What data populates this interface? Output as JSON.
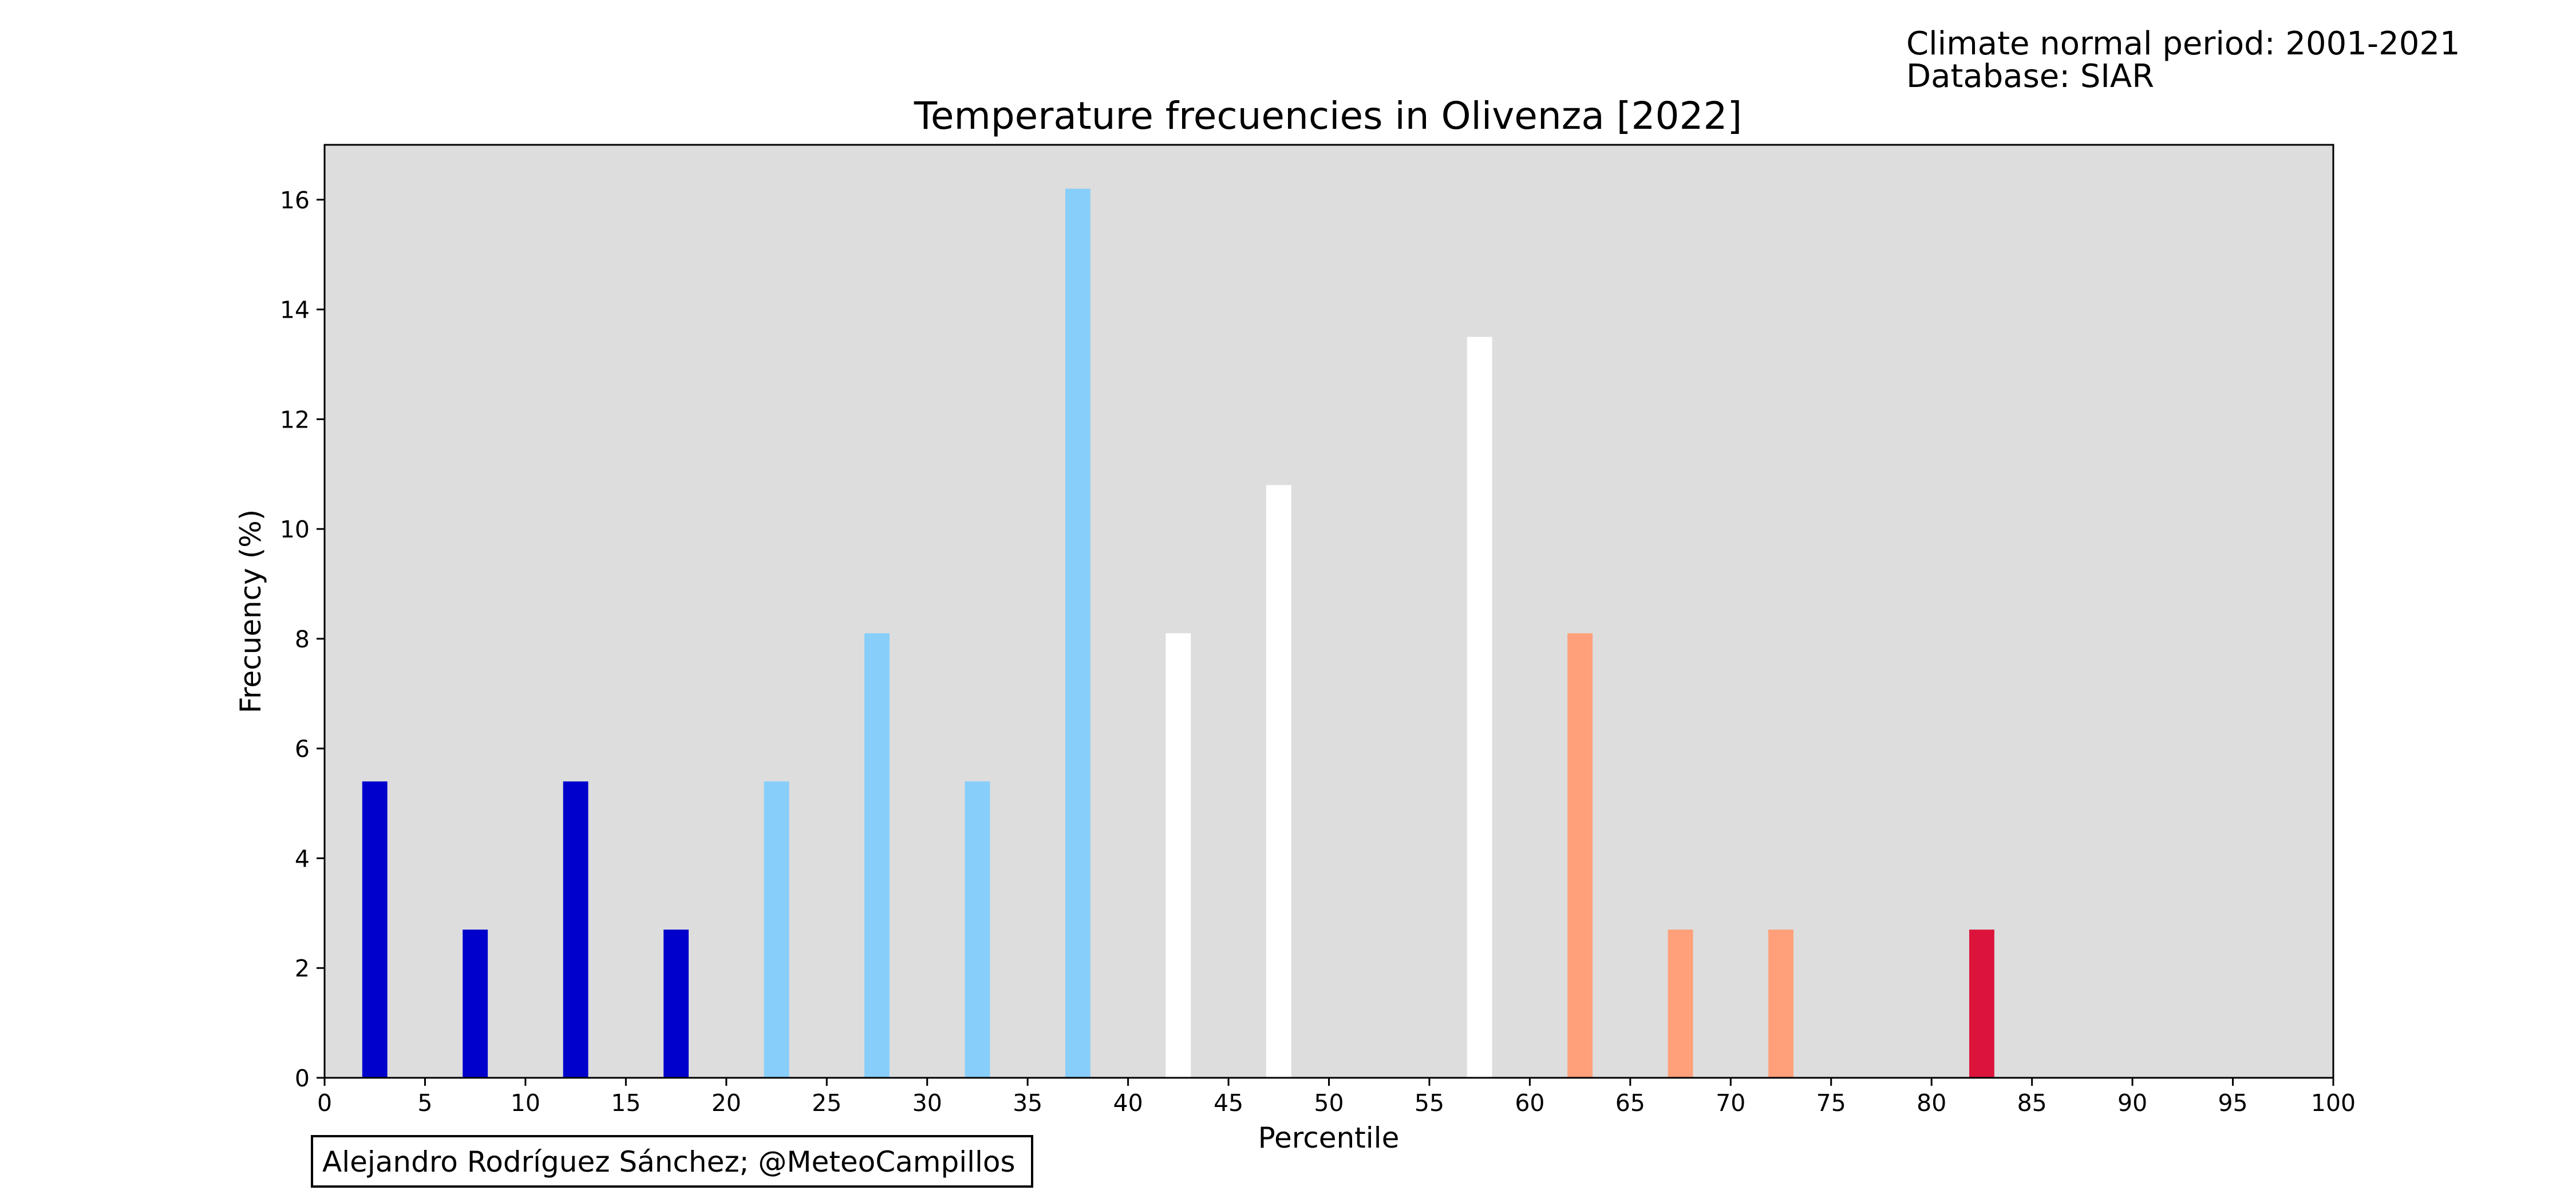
{
  "info": {
    "line1": "Climate normal period: 2001-2021",
    "line2": "Database: SIAR"
  },
  "credit": "Alejandro Rodríguez Sánchez; @MeteoCampillos",
  "chart_data": {
    "type": "bar",
    "title": "Temperature frecuencies in Olivenza [2022]",
    "xlabel": "Percentile",
    "ylabel": "Frecuency (%)",
    "xlim": [
      0,
      100
    ],
    "ylim": [
      0,
      17
    ],
    "xticks": [
      0,
      5,
      10,
      15,
      20,
      25,
      30,
      35,
      40,
      45,
      50,
      55,
      60,
      65,
      70,
      75,
      80,
      85,
      90,
      95,
      100
    ],
    "yticks": [
      0,
      2,
      4,
      6,
      8,
      10,
      12,
      14,
      16
    ],
    "grid": false,
    "background": "#dddddd",
    "bar_width": 1.25,
    "x": [
      2.5,
      7.5,
      12.5,
      17.5,
      22.5,
      27.5,
      32.5,
      37.5,
      42.5,
      47.5,
      52.5,
      57.5,
      62.5,
      67.5,
      72.5,
      77.5,
      82.5,
      87.5,
      92.5,
      97.5
    ],
    "values": [
      5.4,
      2.7,
      5.4,
      2.7,
      5.4,
      8.1,
      5.4,
      16.2,
      8.1,
      10.8,
      0,
      13.5,
      8.1,
      2.7,
      2.7,
      0,
      2.7,
      0,
      0,
      0
    ],
    "colors": [
      "#0000cd",
      "#0000cd",
      "#0000cd",
      "#0000cd",
      "#87cefa",
      "#87cefa",
      "#87cefa",
      "#87cefa",
      "#ffffff",
      "#ffffff",
      "#ffffff",
      "#ffffff",
      "#ffa07a",
      "#ffa07a",
      "#ffa07a",
      "#ffa07a",
      "#dc143c",
      "#dc143c",
      "#dc143c",
      "#dc143c"
    ]
  }
}
